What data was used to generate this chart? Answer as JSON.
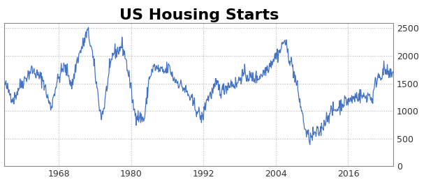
{
  "title": "US Housing Starts",
  "title_fontsize": 16,
  "title_fontweight": "bold",
  "line_color": "#4472C4",
  "background_color": "#FFFFFF",
  "grid_color": "#AAAAAA",
  "ytick_color": "#333333",
  "xtick_color": "#333333",
  "ylim": [
    0,
    2600
  ],
  "yticks": [
    0,
    500,
    1000,
    1500,
    2000,
    2500
  ],
  "xtick_labels": [
    "1968",
    "1980",
    "1992",
    "2004",
    "2016"
  ],
  "xtick_positions": [
    1968,
    1980,
    1992,
    2004,
    2016
  ],
  "xlim": [
    1959.0,
    2023.5
  ],
  "keypoints_x": [
    1959.0,
    1960.0,
    1960.5,
    1961.5,
    1962.5,
    1963.5,
    1964.5,
    1965.5,
    1966.0,
    1966.7,
    1967.5,
    1968.0,
    1968.8,
    1969.5,
    1970.2,
    1971.0,
    1972.0,
    1972.8,
    1973.5,
    1974.0,
    1975.0,
    1975.5,
    1976.0,
    1977.0,
    1978.0,
    1978.5,
    1979.0,
    1979.7,
    1980.5,
    1981.2,
    1982.2,
    1983.0,
    1983.8,
    1984.5,
    1985.5,
    1986.3,
    1987.0,
    1988.0,
    1989.0,
    1990.0,
    1991.0,
    1991.8,
    1992.5,
    1993.5,
    1994.2,
    1995.0,
    1995.8,
    1996.5,
    1997.5,
    1998.3,
    1999.0,
    2000.0,
    2001.0,
    2002.0,
    2003.0,
    2004.0,
    2004.8,
    2005.4,
    2006.0,
    2006.8,
    2007.5,
    2008.3,
    2009.0,
    2009.7,
    2010.5,
    2011.3,
    2012.0,
    2012.8,
    2013.5,
    2014.3,
    2015.0,
    2015.8,
    2016.5,
    2017.3,
    2018.0,
    2018.8,
    2019.5,
    2020.0,
    2020.5,
    2021.0,
    2021.5,
    2022.0,
    2022.7
  ],
  "keypoints_y": [
    1500,
    1300,
    1200,
    1450,
    1600,
    1750,
    1650,
    1550,
    1300,
    1050,
    1450,
    1600,
    1800,
    1700,
    1450,
    1900,
    2200,
    2450,
    2100,
    1700,
    900,
    1050,
    1450,
    2050,
    2100,
    2200,
    2000,
    1600,
    1000,
    900,
    850,
    1600,
    1800,
    1750,
    1700,
    1800,
    1600,
    1500,
    1380,
    1200,
    1000,
    850,
    1200,
    1350,
    1500,
    1350,
    1450,
    1500,
    1480,
    1650,
    1650,
    1600,
    1600,
    1700,
    1850,
    2000,
    2100,
    2300,
    2050,
    1800,
    1450,
    1000,
    600,
    500,
    590,
    620,
    780,
    950,
    1000,
    1050,
    1150,
    1180,
    1200,
    1270,
    1280,
    1250,
    1300,
    1200,
    1500,
    1650,
    1650,
    1750,
    1650
  ],
  "noise_seed": 42,
  "noise_std": 65,
  "line_width": 0.9
}
